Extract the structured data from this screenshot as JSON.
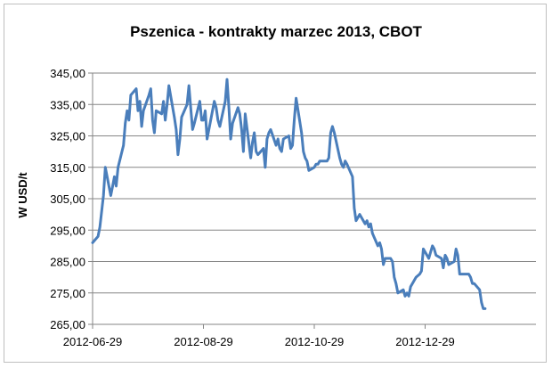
{
  "chart_data": {
    "type": "line",
    "title": "Pszenica - kontrakty marzec 2013, CBOT",
    "xlabel": "",
    "ylabel": "W USD/t",
    "ylim": [
      265,
      345
    ],
    "y_ticks": [
      "345,00",
      "335,00",
      "325,00",
      "315,00",
      "305,00",
      "295,00",
      "285,00",
      "275,00",
      "265,00"
    ],
    "x_ticks": [
      "2012-06-29",
      "2012-08-29",
      "2012-10-29",
      "2012-12-29"
    ],
    "x_range": [
      "2012-06-29",
      "2013-02-28"
    ],
    "grid": "horizontal",
    "legend": "none",
    "line_color": "#4a7ebb",
    "series": [
      {
        "values": [
          [
            "2012-06-29",
            291.0
          ],
          [
            "2012-07-02",
            293.0
          ],
          [
            "2012-07-03",
            296.0
          ],
          [
            "2012-07-05",
            306.0
          ],
          [
            "2012-07-06",
            315.0
          ],
          [
            "2012-07-09",
            306.0
          ],
          [
            "2012-07-10",
            309.0
          ],
          [
            "2012-07-11",
            312.0
          ],
          [
            "2012-07-12",
            309.0
          ],
          [
            "2012-07-13",
            315.0
          ],
          [
            "2012-07-16",
            322.0
          ],
          [
            "2012-07-17",
            329.0
          ],
          [
            "2012-07-18",
            333.0
          ],
          [
            "2012-07-19",
            330.0
          ],
          [
            "2012-07-20",
            338.0
          ],
          [
            "2012-07-23",
            340.0
          ],
          [
            "2012-07-24",
            333.0
          ],
          [
            "2012-07-25",
            336.0
          ],
          [
            "2012-07-26",
            328.0
          ],
          [
            "2012-07-27",
            333.0
          ],
          [
            "2012-07-30",
            338.0
          ],
          [
            "2012-07-31",
            340.0
          ],
          [
            "2012-08-01",
            330.0
          ],
          [
            "2012-08-02",
            326.0
          ],
          [
            "2012-08-03",
            333.0
          ],
          [
            "2012-08-06",
            332.0
          ],
          [
            "2012-08-07",
            336.0
          ],
          [
            "2012-08-08",
            330.0
          ],
          [
            "2012-08-09",
            335.0
          ],
          [
            "2012-08-10",
            341.0
          ],
          [
            "2012-08-13",
            331.0
          ],
          [
            "2012-08-14",
            327.0
          ],
          [
            "2012-08-15",
            319.0
          ],
          [
            "2012-08-16",
            324.0
          ],
          [
            "2012-08-17",
            331.0
          ],
          [
            "2012-08-20",
            335.0
          ],
          [
            "2012-08-21",
            341.0
          ],
          [
            "2012-08-22",
            334.0
          ],
          [
            "2012-08-23",
            327.0
          ],
          [
            "2012-08-24",
            329.0
          ],
          [
            "2012-08-27",
            336.0
          ],
          [
            "2012-08-28",
            330.0
          ],
          [
            "2012-08-29",
            330.0
          ],
          [
            "2012-08-30",
            333.0
          ],
          [
            "2012-08-31",
            324.0
          ],
          [
            "2012-09-04",
            336.0
          ],
          [
            "2012-09-05",
            334.0
          ],
          [
            "2012-09-06",
            330.0
          ],
          [
            "2012-09-07",
            328.0
          ],
          [
            "2012-09-10",
            336.0
          ],
          [
            "2012-09-11",
            343.0
          ],
          [
            "2012-09-12",
            334.0
          ],
          [
            "2012-09-13",
            324.0
          ],
          [
            "2012-09-14",
            329.0
          ],
          [
            "2012-09-17",
            334.0
          ],
          [
            "2012-09-18",
            332.0
          ],
          [
            "2012-09-19",
            327.0
          ],
          [
            "2012-09-20",
            320.0
          ],
          [
            "2012-09-21",
            332.0
          ],
          [
            "2012-09-24",
            318.0
          ],
          [
            "2012-09-25",
            323.0
          ],
          [
            "2012-09-26",
            326.0
          ],
          [
            "2012-09-27",
            320.0
          ],
          [
            "2012-09-28",
            319.0
          ],
          [
            "2012-10-01",
            321.0
          ],
          [
            "2012-10-02",
            315.0
          ],
          [
            "2012-10-03",
            324.0
          ],
          [
            "2012-10-04",
            326.0
          ],
          [
            "2012-10-05",
            327.0
          ],
          [
            "2012-10-08",
            322.0
          ],
          [
            "2012-10-09",
            324.0
          ],
          [
            "2012-10-10",
            321.0
          ],
          [
            "2012-10-11",
            320.0
          ],
          [
            "2012-10-12",
            324.0
          ],
          [
            "2012-10-15",
            325.0
          ],
          [
            "2012-10-16",
            321.0
          ],
          [
            "2012-10-17",
            322.0
          ],
          [
            "2012-10-18",
            330.0
          ],
          [
            "2012-10-19",
            337.0
          ],
          [
            "2012-10-22",
            326.0
          ],
          [
            "2012-10-23",
            320.0
          ],
          [
            "2012-10-24",
            318.0
          ],
          [
            "2012-10-25",
            317.0
          ],
          [
            "2012-10-26",
            314.0
          ],
          [
            "2012-10-29",
            315.0
          ],
          [
            "2012-10-30",
            316.0
          ],
          [
            "2012-10-31",
            316.0
          ],
          [
            "2012-11-01",
            317.0
          ],
          [
            "2012-11-02",
            317.0
          ],
          [
            "2012-11-05",
            317.0
          ],
          [
            "2012-11-06",
            318.0
          ],
          [
            "2012-11-07",
            326.0
          ],
          [
            "2012-11-08",
            328.0
          ],
          [
            "2012-11-09",
            326.0
          ],
          [
            "2012-11-12",
            318.0
          ],
          [
            "2012-11-13",
            316.0
          ],
          [
            "2012-11-14",
            315.0
          ],
          [
            "2012-11-15",
            317.0
          ],
          [
            "2012-11-16",
            316.0
          ],
          [
            "2012-11-19",
            312.0
          ],
          [
            "2012-11-20",
            302.0
          ],
          [
            "2012-11-21",
            298.0
          ],
          [
            "2012-11-23",
            300.0
          ],
          [
            "2012-11-26",
            297.0
          ],
          [
            "2012-11-27",
            298.0
          ],
          [
            "2012-11-28",
            296.0
          ],
          [
            "2012-11-29",
            297.0
          ],
          [
            "2012-11-30",
            294.0
          ],
          [
            "2012-12-03",
            290.0
          ],
          [
            "2012-12-04",
            291.0
          ],
          [
            "2012-12-05",
            289.0
          ],
          [
            "2012-12-06",
            284.0
          ],
          [
            "2012-12-07",
            286.0
          ],
          [
            "2012-12-10",
            286.0
          ],
          [
            "2012-12-11",
            285.0
          ],
          [
            "2012-12-12",
            280.0
          ],
          [
            "2012-12-13",
            278.0
          ],
          [
            "2012-12-14",
            275.0
          ],
          [
            "2012-12-17",
            276.0
          ],
          [
            "2012-12-18",
            274.0
          ],
          [
            "2012-12-19",
            275.0
          ],
          [
            "2012-12-20",
            274.0
          ],
          [
            "2012-12-21",
            277.0
          ],
          [
            "2012-12-24",
            280.0
          ],
          [
            "2012-12-26",
            281.0
          ],
          [
            "2012-12-27",
            282.0
          ],
          [
            "2012-12-28",
            289.0
          ],
          [
            "2012-12-31",
            286.0
          ],
          [
            "2013-01-02",
            290.0
          ],
          [
            "2013-01-03",
            289.0
          ],
          [
            "2013-01-04",
            287.0
          ],
          [
            "2013-01-07",
            286.0
          ],
          [
            "2013-01-08",
            283.0
          ],
          [
            "2013-01-09",
            287.0
          ],
          [
            "2013-01-10",
            286.0
          ],
          [
            "2013-01-11",
            284.0
          ],
          [
            "2013-01-14",
            285.0
          ],
          [
            "2013-01-15",
            289.0
          ],
          [
            "2013-01-16",
            287.0
          ],
          [
            "2013-01-17",
            281.0
          ],
          [
            "2013-01-18",
            281.0
          ],
          [
            "2013-01-22",
            281.0
          ],
          [
            "2013-01-23",
            280.0
          ],
          [
            "2013-01-24",
            278.0
          ],
          [
            "2013-01-25",
            278.0
          ],
          [
            "2013-01-28",
            276.0
          ],
          [
            "2013-01-29",
            272.0
          ],
          [
            "2013-01-30",
            270.0
          ],
          [
            "2013-01-31",
            270.0
          ]
        ]
      }
    ]
  }
}
